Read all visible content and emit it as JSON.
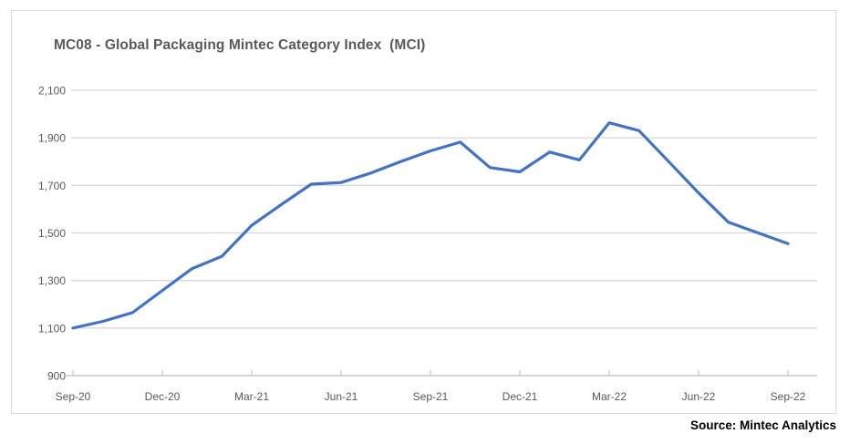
{
  "chart": {
    "title": "MC08 - Global Packaging Mintec Category Index  (MCI)",
    "source": "Source: Mintec Analytics"
  },
  "chart_data": {
    "type": "line",
    "title": "MC08 - Global Packaging Mintec Category Index (MCI)",
    "x": [
      "Sep-20",
      "Oct-20",
      "Nov-20",
      "Dec-20",
      "Jan-21",
      "Feb-21",
      "Mar-21",
      "Apr-21",
      "May-21",
      "Jun-21",
      "Jul-21",
      "Aug-21",
      "Sep-21",
      "Oct-21",
      "Nov-21",
      "Dec-21",
      "Jan-22",
      "Feb-22",
      "Mar-22",
      "Apr-22",
      "May-22",
      "Jun-22",
      "Jul-22",
      "Aug-22",
      "Sep-22"
    ],
    "values": [
      1100,
      1128,
      1165,
      1258,
      1350,
      1402,
      1532,
      1620,
      1705,
      1712,
      1752,
      1800,
      1845,
      1882,
      1775,
      1757,
      1840,
      1807,
      1963,
      1930,
      1800,
      1668,
      1545,
      1500,
      1455
    ],
    "xlabel": "",
    "ylabel": "",
    "ylim": [
      900,
      2100
    ],
    "y_ticks": [
      900,
      1100,
      1300,
      1500,
      1700,
      1900,
      2100
    ],
    "y_tick_labels": [
      "900",
      "1,100",
      "1,300",
      "1,500",
      "1,700",
      "1,900",
      "2,100"
    ],
    "x_tick_labels": [
      "Sep-20",
      "Dec-20",
      "Mar-21",
      "Jun-21",
      "Sep-21",
      "Dec-21",
      "Mar-22",
      "Jun-22",
      "Sep-22"
    ],
    "grid": "horizontal",
    "legend": "none",
    "line_color": "#4472C4",
    "grid_color": "#D9D9D9",
    "axis_color": "#BFBFBF",
    "label_color": "#595959",
    "source": "Source: Mintec Analytics"
  }
}
